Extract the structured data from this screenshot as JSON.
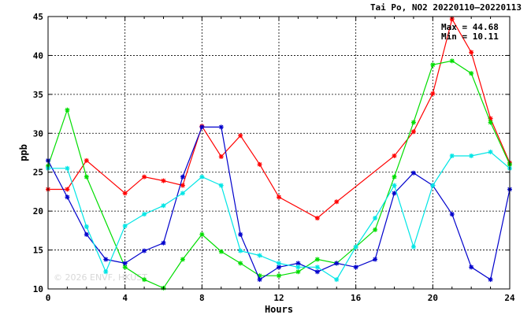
{
  "chart_data": {
    "type": "line",
    "title": "Tai Po, NO2 20220110—20220113",
    "xlabel": "Hours",
    "ylabel": "ppb",
    "xlim": [
      0,
      24
    ],
    "ylim": [
      10,
      45
    ],
    "xticks": [
      0,
      4,
      8,
      12,
      16,
      20,
      24
    ],
    "yticks": [
      10,
      15,
      20,
      25,
      30,
      35,
      40,
      45
    ],
    "x_tick_labels": [
      "0",
      "4",
      "8",
      "12",
      "16",
      "20",
      "24"
    ],
    "y_tick_labels": [
      "10",
      "15",
      "20",
      "25",
      "30",
      "35",
      "40",
      "45"
    ],
    "grid": true,
    "annotations": [
      "Max = 44.68",
      "Min = 10.11"
    ],
    "watermark": "© 2026  ENVF, HKUST",
    "series": [
      {
        "color": "#ff0000",
        "x": [
          0,
          1,
          2,
          4,
          5,
          6,
          7,
          8,
          9,
          10,
          11,
          12,
          14,
          15,
          18,
          19,
          20,
          21,
          22,
          23,
          24
        ],
        "y": [
          22.8,
          22.8,
          26.5,
          22.3,
          24.4,
          23.9,
          23.3,
          30.9,
          27.0,
          29.7,
          26.0,
          21.8,
          19.1,
          21.2,
          27.1,
          30.2,
          35.1,
          44.68,
          40.4,
          31.9,
          26.2
        ]
      },
      {
        "color": "#00dd00",
        "x": [
          0,
          1,
          2,
          4,
          5,
          6,
          7,
          8,
          9,
          10,
          11,
          12,
          13,
          14,
          15,
          16,
          17,
          18,
          19,
          20,
          21,
          22,
          23,
          24
        ],
        "y": [
          25.8,
          33.0,
          24.4,
          12.8,
          11.2,
          10.11,
          13.8,
          17.0,
          14.8,
          13.3,
          11.7,
          11.7,
          12.2,
          13.8,
          13.3,
          15.4,
          17.6,
          24.4,
          31.4,
          38.8,
          39.3,
          37.7,
          31.4,
          26.0
        ]
      },
      {
        "color": "#0000cc",
        "x": [
          0,
          1,
          2,
          3,
          4,
          5,
          6,
          7,
          8,
          9,
          10,
          11,
          12,
          13,
          14,
          15,
          16,
          17,
          18,
          19,
          20,
          21,
          22,
          23,
          24
        ],
        "y": [
          26.5,
          21.8,
          17.0,
          13.8,
          13.3,
          14.9,
          15.9,
          24.4,
          30.8,
          30.8,
          17.0,
          11.2,
          12.8,
          13.3,
          12.2,
          13.3,
          12.8,
          13.8,
          22.3,
          24.9,
          23.3,
          19.6,
          12.8,
          11.2,
          22.8
        ]
      },
      {
        "color": "#00e5e5",
        "x": [
          0,
          1,
          2,
          3,
          4,
          5,
          6,
          7,
          8,
          9,
          10,
          11,
          12,
          13,
          14,
          15,
          16,
          17,
          18,
          19,
          20,
          21,
          22,
          23,
          24
        ],
        "y": [
          25.5,
          25.5,
          18.0,
          12.2,
          18.1,
          19.6,
          20.7,
          22.3,
          24.4,
          23.3,
          14.9,
          14.3,
          13.3,
          12.8,
          12.8,
          11.2,
          15.4,
          19.1,
          23.3,
          15.4,
          23.3,
          27.1,
          27.1,
          27.6,
          25.5
        ]
      }
    ]
  }
}
